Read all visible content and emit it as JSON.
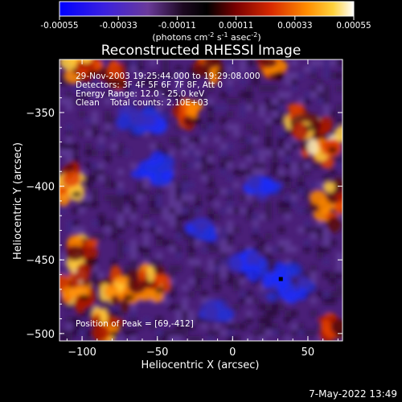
{
  "colorbar": {
    "tick_labels": [
      "-0.00055",
      "-0.00033",
      "-0.00011",
      "0.00011",
      "0.00033",
      "0.00055"
    ],
    "min": -0.00055,
    "max": 0.00055,
    "unit_text": "(photons cm",
    "unit_exp1": "-2",
    "unit_mid": " s",
    "unit_exp2": "-1",
    "unit_tail": " asec",
    "unit_exp3": "-2",
    "unit_close": ")"
  },
  "title": "Reconstructed RHESSI Image",
  "info_lines": [
    "29-Nov-2003 19:25:44.000 to 19:29:08.000",
    "Detectors: 3F 4F 5F 6F 7F 8F, Att 0",
    "Energy Range: 12.0 - 25.0 keV",
    "Clean    Total counts: 2.10E+03"
  ],
  "peak_label": "Position of Peak = [69,-412]",
  "timestamp": "7-May-2022 13:49",
  "chart_data": {
    "type": "heatmap",
    "title": "Reconstructed RHESSI Image",
    "xlabel": "Heliocentric X (arcsec)",
    "ylabel": "Heliocentric Y (arcsec)",
    "xlim": [
      -115,
      73
    ],
    "ylim": [
      -505,
      -314
    ],
    "x_ticks": [
      -100,
      -50,
      0,
      50
    ],
    "y_ticks": [
      -350,
      -400,
      -450,
      -500
    ],
    "colormap": [
      "#0000ff",
      "#5a2ad0",
      "#6a3a9a",
      "#2a0c2e",
      "#000000",
      "#5a0000",
      "#c81e00",
      "#ff7800",
      "#ffc800",
      "#ffffff"
    ],
    "peak_position": [
      69,
      -412
    ],
    "marker_position": [
      32,
      -463
    ],
    "hot_regions": [
      {
        "x": -100,
        "y": -318,
        "level": 0.6
      },
      {
        "x": -80,
        "y": -325,
        "level": 0.4
      },
      {
        "x": -15,
        "y": -318,
        "level": 0.5
      },
      {
        "x": 25,
        "y": -320,
        "level": 0.5
      },
      {
        "x": 60,
        "y": -370,
        "level": 1.0
      },
      {
        "x": 69,
        "y": -412,
        "level": 1.0
      },
      {
        "x": 45,
        "y": -355,
        "level": 0.6
      },
      {
        "x": -110,
        "y": -400,
        "level": 0.8
      },
      {
        "x": -100,
        "y": -445,
        "level": 0.6
      },
      {
        "x": -105,
        "y": -470,
        "level": 0.9
      },
      {
        "x": -75,
        "y": -470,
        "level": 0.8
      },
      {
        "x": -55,
        "y": -465,
        "level": 0.7
      },
      {
        "x": -85,
        "y": -495,
        "level": 0.6
      },
      {
        "x": -30,
        "y": -350,
        "level": 0.4
      },
      {
        "x": 65,
        "y": -495,
        "level": 0.4
      }
    ],
    "cold_regions": [
      {
        "x": -60,
        "y": -355,
        "level": 0.8
      },
      {
        "x": -50,
        "y": -390,
        "level": 0.6
      },
      {
        "x": -20,
        "y": -430,
        "level": 0.5
      },
      {
        "x": 35,
        "y": -465,
        "level": 0.9
      },
      {
        "x": 10,
        "y": -455,
        "level": 0.5
      },
      {
        "x": 20,
        "y": -400,
        "level": 0.4
      },
      {
        "x": -10,
        "y": -485,
        "level": 0.4
      }
    ]
  }
}
